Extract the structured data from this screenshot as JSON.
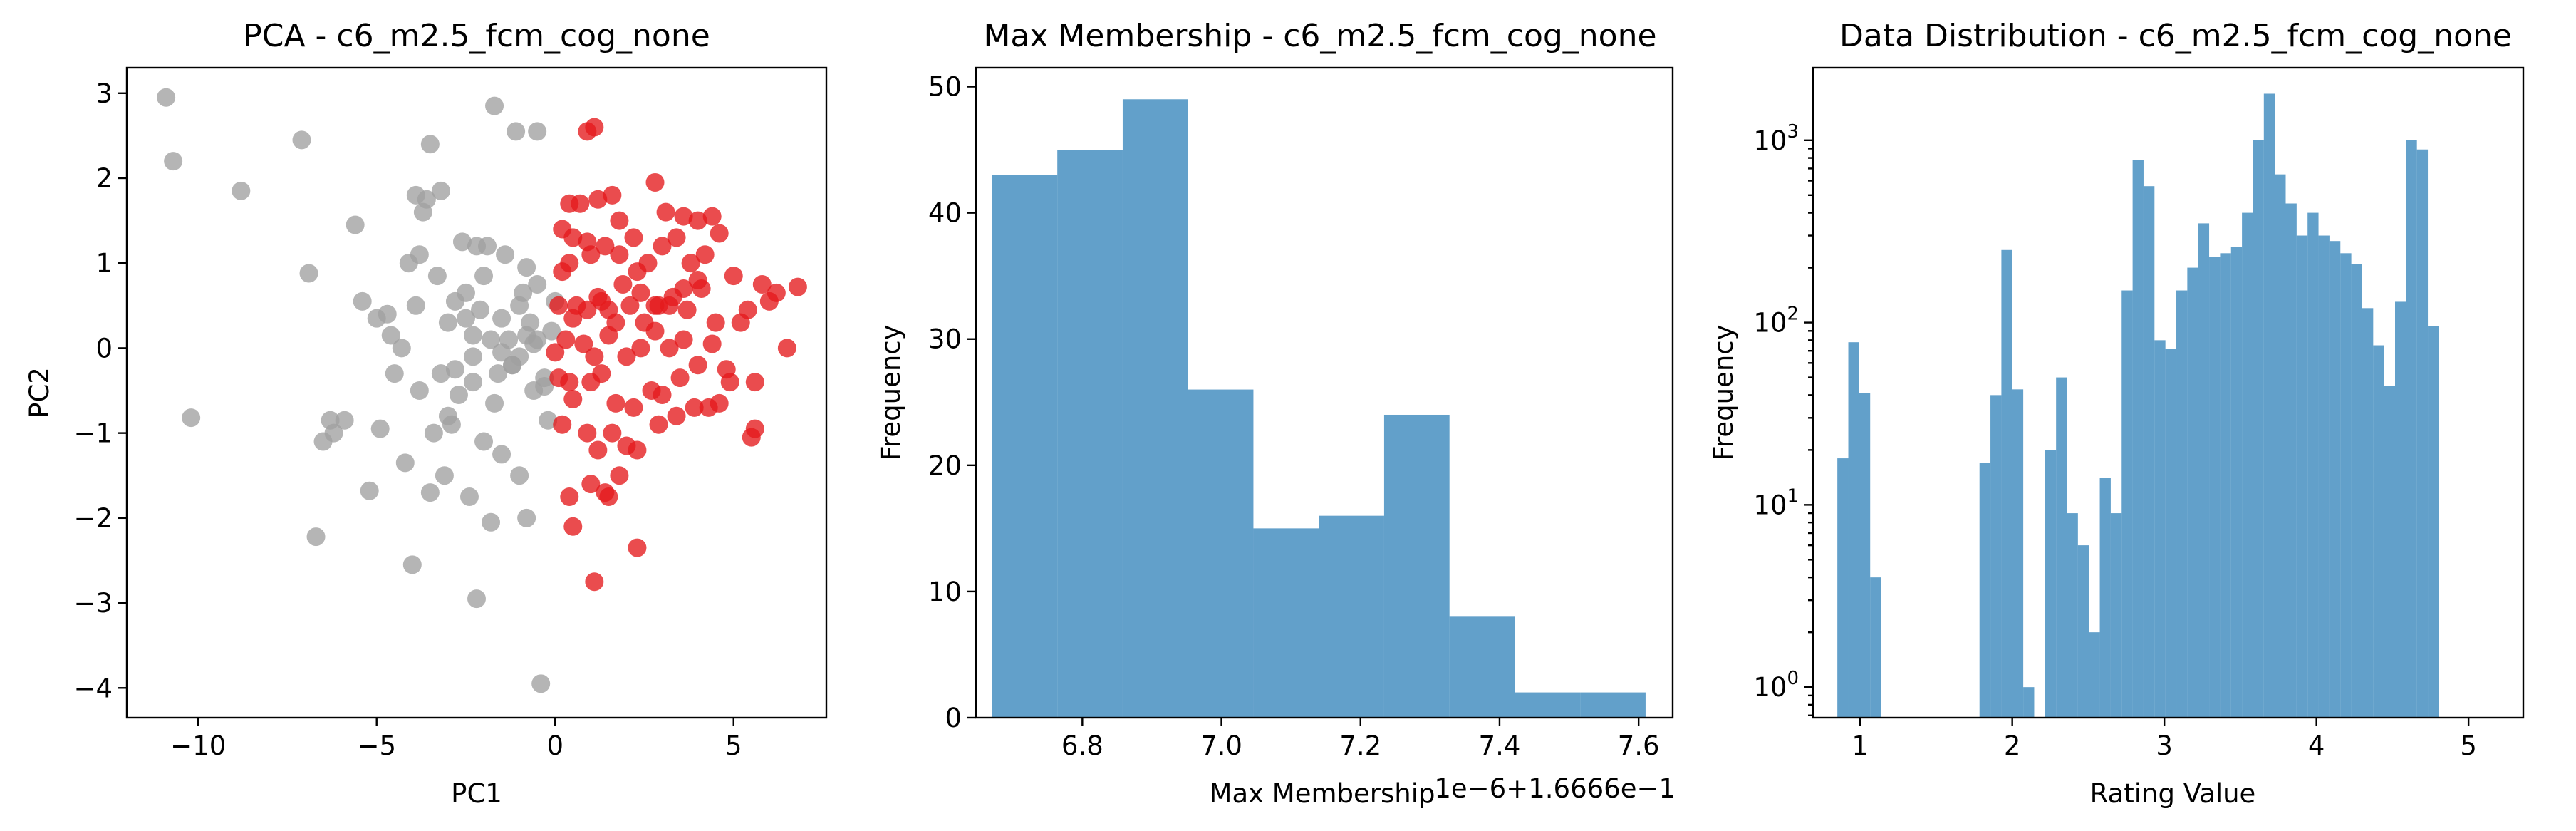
{
  "chart_data": [
    {
      "type": "scatter",
      "title": "PCA - c6_m2.5_fcm_cog_none",
      "xlabel": "PC1",
      "ylabel": "PC2",
      "xlim": [
        -12,
        7.6
      ],
      "ylim": [
        -4.35,
        3.3
      ],
      "xticks": [
        -10,
        -5,
        0,
        5
      ],
      "xtick_labels": [
        "−10",
        "−5",
        "0",
        "5"
      ],
      "yticks": [
        3,
        2,
        1,
        0,
        -1,
        -2,
        -3,
        -4
      ],
      "ytick_labels": [
        "3",
        "2",
        "1",
        "0",
        "−1",
        "−2",
        "−3",
        "−4"
      ],
      "grid": false,
      "colors": {
        "gray": "#a0a0a0",
        "red": "#e41a1c"
      },
      "series": [
        {
          "color_key": "gray",
          "x": [
            -10.9,
            -10.7,
            -10.2,
            -8.8,
            -7.1,
            -6.9,
            -6.7,
            -6.5,
            -6.3,
            -6.2,
            -5.9,
            -5.6,
            -5.4,
            -5.2,
            -5.0,
            -4.9,
            -4.7,
            -4.6,
            -4.5,
            -4.3,
            -4.2,
            -4.1,
            -4.0,
            -3.9,
            -3.9,
            -3.8,
            -3.8,
            -3.7,
            -3.6,
            -3.5,
            -3.5,
            -3.4,
            -3.3,
            -3.2,
            -3.2,
            -3.1,
            -3.0,
            -2.9,
            -2.8,
            -2.8,
            -2.7,
            -2.6,
            -2.5,
            -2.4,
            -2.3,
            -2.3,
            -2.2,
            -2.2,
            -2.1,
            -2.0,
            -2.0,
            -1.9,
            -1.8,
            -1.8,
            -1.7,
            -1.6,
            -1.5,
            -1.5,
            -1.4,
            -1.3,
            -1.2,
            -1.1,
            -1.0,
            -1.0,
            -0.9,
            -0.8,
            -0.8,
            -0.7,
            -0.6,
            -0.5,
            -0.5,
            -0.4,
            -0.3,
            -0.2,
            -0.1,
            0.0,
            -1.7,
            -1.0,
            -0.6,
            -2.3,
            -1.2,
            -0.8,
            -0.5,
            -2.5,
            -3.0,
            -1.5,
            -0.3
          ],
          "y": [
            2.95,
            2.2,
            -0.82,
            1.85,
            2.45,
            0.88,
            -2.22,
            -1.1,
            -0.85,
            -1.0,
            -0.85,
            1.45,
            0.55,
            -1.68,
            0.35,
            -0.95,
            0.4,
            0.15,
            -0.3,
            0.0,
            -1.35,
            1.0,
            -2.55,
            1.8,
            0.5,
            -0.5,
            1.1,
            1.6,
            1.75,
            -1.7,
            2.4,
            -1.0,
            0.85,
            1.85,
            -0.3,
            -1.5,
            -0.8,
            -0.9,
            -0.25,
            0.55,
            -0.55,
            1.25,
            0.65,
            -1.75,
            -0.4,
            0.15,
            1.2,
            -2.95,
            0.45,
            0.85,
            -1.1,
            1.2,
            0.1,
            -2.05,
            2.85,
            -0.3,
            0.35,
            -1.25,
            1.1,
            0.1,
            -0.2,
            2.55,
            -1.5,
            -0.1,
            0.65,
            0.95,
            -2.0,
            0.3,
            -0.5,
            2.55,
            0.75,
            -3.95,
            -0.45,
            -0.85,
            0.2,
            0.55,
            -0.65,
            0.5,
            0.05,
            -0.1,
            -0.2,
            0.15,
            0.1,
            0.35,
            0.3,
            -0.05,
            -0.35
          ]
        },
        {
          "color_key": "red",
          "x": [
            0.9,
            1.1,
            0.4,
            0.7,
            0.2,
            0.5,
            0.9,
            1.2,
            1.6,
            1.8,
            2.2,
            2.8,
            3.1,
            3.6,
            4.0,
            4.4,
            0.4,
            1.0,
            1.4,
            1.8,
            2.3,
            2.6,
            3.0,
            3.4,
            3.8,
            4.2,
            4.6,
            0.2,
            0.6,
            1.2,
            1.5,
            1.9,
            2.4,
            2.8,
            3.2,
            3.6,
            4.0,
            0.1,
            0.5,
            0.9,
            1.3,
            1.7,
            2.1,
            2.5,
            2.9,
            3.3,
            3.7,
            4.1,
            4.5,
            5.0,
            5.4,
            5.8,
            6.2,
            6.8,
            0.0,
            0.3,
            0.8,
            1.1,
            1.5,
            2.0,
            2.4,
            2.8,
            3.2,
            3.6,
            4.0,
            4.4,
            4.8,
            5.2,
            5.6,
            6.0,
            6.5,
            0.1,
            0.4,
            1.0,
            1.3,
            1.7,
            2.2,
            2.7,
            3.0,
            3.5,
            4.3,
            4.9,
            5.6,
            0.2,
            0.5,
            0.9,
            1.2,
            1.6,
            2.0,
            2.3,
            2.9,
            3.4,
            3.9,
            4.6,
            5.5,
            0.4,
            1.0,
            1.4,
            1.8,
            1.1,
            2.3,
            0.5,
            1.5
          ],
          "y": [
            2.55,
            2.6,
            1.7,
            1.7,
            1.4,
            1.3,
            1.25,
            1.75,
            1.8,
            1.5,
            1.3,
            1.95,
            1.6,
            1.55,
            1.5,
            1.55,
            1.0,
            1.1,
            1.2,
            1.1,
            0.9,
            1.0,
            1.2,
            1.3,
            1.0,
            1.1,
            1.35,
            0.9,
            0.5,
            0.6,
            0.45,
            0.75,
            0.65,
            0.5,
            0.5,
            0.7,
            0.8,
            0.5,
            0.35,
            0.45,
            0.55,
            0.3,
            0.5,
            0.3,
            0.5,
            0.6,
            0.45,
            0.7,
            0.3,
            0.85,
            0.45,
            0.75,
            0.65,
            0.72,
            -0.05,
            0.1,
            0.05,
            -0.1,
            0.15,
            -0.1,
            0.0,
            0.2,
            0.0,
            0.1,
            -0.2,
            0.05,
            -0.25,
            0.3,
            -0.4,
            0.55,
            0.0,
            -0.35,
            -0.4,
            -0.4,
            -0.3,
            -0.65,
            -0.7,
            -0.5,
            -0.55,
            -0.35,
            -0.7,
            -0.4,
            -0.95,
            -0.9,
            -0.6,
            -1.0,
            -1.2,
            -1.0,
            -1.15,
            -1.2,
            -0.9,
            -0.8,
            -0.7,
            -0.65,
            -1.05,
            -1.75,
            -1.6,
            -1.7,
            -1.5,
            -2.75,
            -2.35,
            -2.1,
            -1.75
          ]
        }
      ]
    },
    {
      "type": "bar",
      "title": "Max Membership - c6_m2.5_fcm_cog_none",
      "xlabel": "Max Membership",
      "ylabel": "Frequency",
      "offset_text": "1e−6+1.6666e−1",
      "xlim": [
        6.647,
        7.649
      ],
      "ylim": [
        0,
        51.5
      ],
      "xticks": [
        6.8,
        7.0,
        7.2,
        7.4,
        7.6
      ],
      "xtick_labels": [
        "6.8",
        "7.0",
        "7.2",
        "7.4",
        "7.6"
      ],
      "yticks": [
        0,
        10,
        20,
        30,
        40,
        50
      ],
      "ytick_labels": [
        "0",
        "10",
        "20",
        "30",
        "40",
        "50"
      ],
      "bin_edges": [
        6.67,
        6.764,
        6.858,
        6.952,
        7.046,
        7.14,
        7.234,
        7.328,
        7.422,
        7.516,
        7.61
      ],
      "values": [
        43,
        45,
        49,
        26,
        15,
        16,
        24,
        8,
        2,
        2
      ],
      "color": "#1f77b4",
      "alpha": 0.7,
      "grid": false
    },
    {
      "type": "bar",
      "title": "Data Distribution - c6_m2.5_fcm_cog_none",
      "xlabel": "Rating Value",
      "ylabel": "Frequency",
      "yscale": "log",
      "xlim": [
        0.69,
        5.36
      ],
      "ylim": [
        0.68,
        2500
      ],
      "xticks": [
        1,
        2,
        3,
        4,
        5
      ],
      "xtick_labels": [
        "1",
        "2",
        "3",
        "4",
        "5"
      ],
      "yticks": [
        1,
        10,
        100,
        1000
      ],
      "ytick_labels": [
        {
          "base": "10",
          "exp": "0"
        },
        {
          "base": "10",
          "exp": "1"
        },
        {
          "base": "10",
          "exp": "2"
        },
        {
          "base": "10",
          "exp": "3"
        }
      ],
      "bin_start": 0.85,
      "bin_width": 0.0719,
      "values": [
        18,
        78,
        41,
        4,
        0,
        0,
        0,
        0,
        0,
        0,
        0,
        0,
        0,
        17,
        40,
        250,
        43,
        1,
        0,
        20,
        50,
        9,
        6,
        2,
        14,
        9,
        150,
        780,
        560,
        80,
        72,
        150,
        200,
        350,
        230,
        240,
        260,
        400,
        1000,
        1800,
        650,
        450,
        300,
        400,
        300,
        280,
        240,
        210,
        120,
        75,
        45,
        130,
        1000,
        890,
        96
      ],
      "color": "#1f77b4",
      "alpha": 0.7,
      "grid": false
    }
  ]
}
